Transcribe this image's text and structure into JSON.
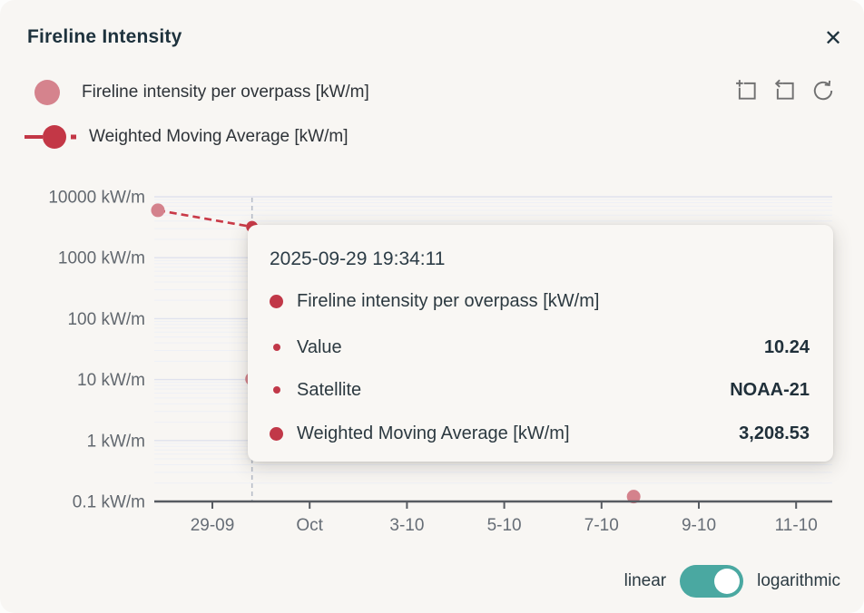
{
  "window": {
    "title": "Fireline Intensity",
    "close_label": "✕"
  },
  "legend": [
    {
      "label": "Fireline intensity per overpass [kW/m]",
      "marker": "circle",
      "color": "#d5838d"
    },
    {
      "label": "Weighted Moving Average [kW/m]",
      "marker": "line-dot-dash",
      "color": "#c33746"
    }
  ],
  "toolbar": {
    "icons": [
      "crop-zoom-icon",
      "undo-zoom-icon",
      "refresh-icon"
    ]
  },
  "chart_data": {
    "type": "scatter",
    "title": "Fireline Intensity",
    "y_axis": {
      "scale": "log",
      "unit": "kW/m",
      "range": [
        0.1,
        10000
      ],
      "ticks": [
        {
          "label": "10000 kW/m",
          "value": 10000
        },
        {
          "label": "1000 kW/m",
          "value": 1000
        },
        {
          "label": "100 kW/m",
          "value": 100
        },
        {
          "label": "10 kW/m",
          "value": 10
        },
        {
          "label": "1 kW/m",
          "value": 1
        },
        {
          "label": "0.1 kW/m",
          "value": 0.1
        }
      ]
    },
    "x_axis": {
      "unit": "date (days relative to 29 Sep 2025)",
      "ticks": [
        {
          "label": "29-09",
          "day": 0
        },
        {
          "label": "Oct",
          "day": 2
        },
        {
          "label": "3-10",
          "day": 4
        },
        {
          "label": "5-10",
          "day": 6
        },
        {
          "label": "7-10",
          "day": 8
        },
        {
          "label": "9-10",
          "day": 10
        },
        {
          "label": "11-10",
          "day": 12
        }
      ]
    },
    "series": [
      {
        "name": "Fireline intensity per overpass [kW/m]",
        "type": "scatter",
        "color": "#d4828c",
        "points": [
          {
            "day": -1.12,
            "value": 6000
          },
          {
            "day": 0.8154,
            "value": 10.24
          },
          {
            "day": 8.66,
            "value": 0.12
          }
        ]
      },
      {
        "name": "Weighted Moving Average [kW/m]",
        "type": "dashed_line",
        "color": "#c93a48",
        "points": [
          {
            "day": -1.12,
            "value": 6000
          },
          {
            "day": 0.8154,
            "value": 3208.53
          }
        ]
      }
    ],
    "crosshair_day": 0.8154,
    "legend_position": "top-left",
    "grid": true
  },
  "tooltip": {
    "timestamp": "2025-09-29 19:34:11",
    "rows": [
      {
        "marker": "large",
        "label": "Fireline intensity per overpass [kW/m]",
        "value": ""
      },
      {
        "marker": "small",
        "label": "Value",
        "value": "10.24"
      },
      {
        "marker": "small",
        "label": "Satellite",
        "value": "NOAA-21"
      },
      {
        "marker": "large",
        "label": "Weighted Moving Average [kW/m]",
        "value": "3,208.53"
      }
    ]
  },
  "scale_toggle": {
    "left_label": "linear",
    "right_label": "logarithmic",
    "selected": "logarithmic",
    "accent_color": "#4aa8a1"
  }
}
